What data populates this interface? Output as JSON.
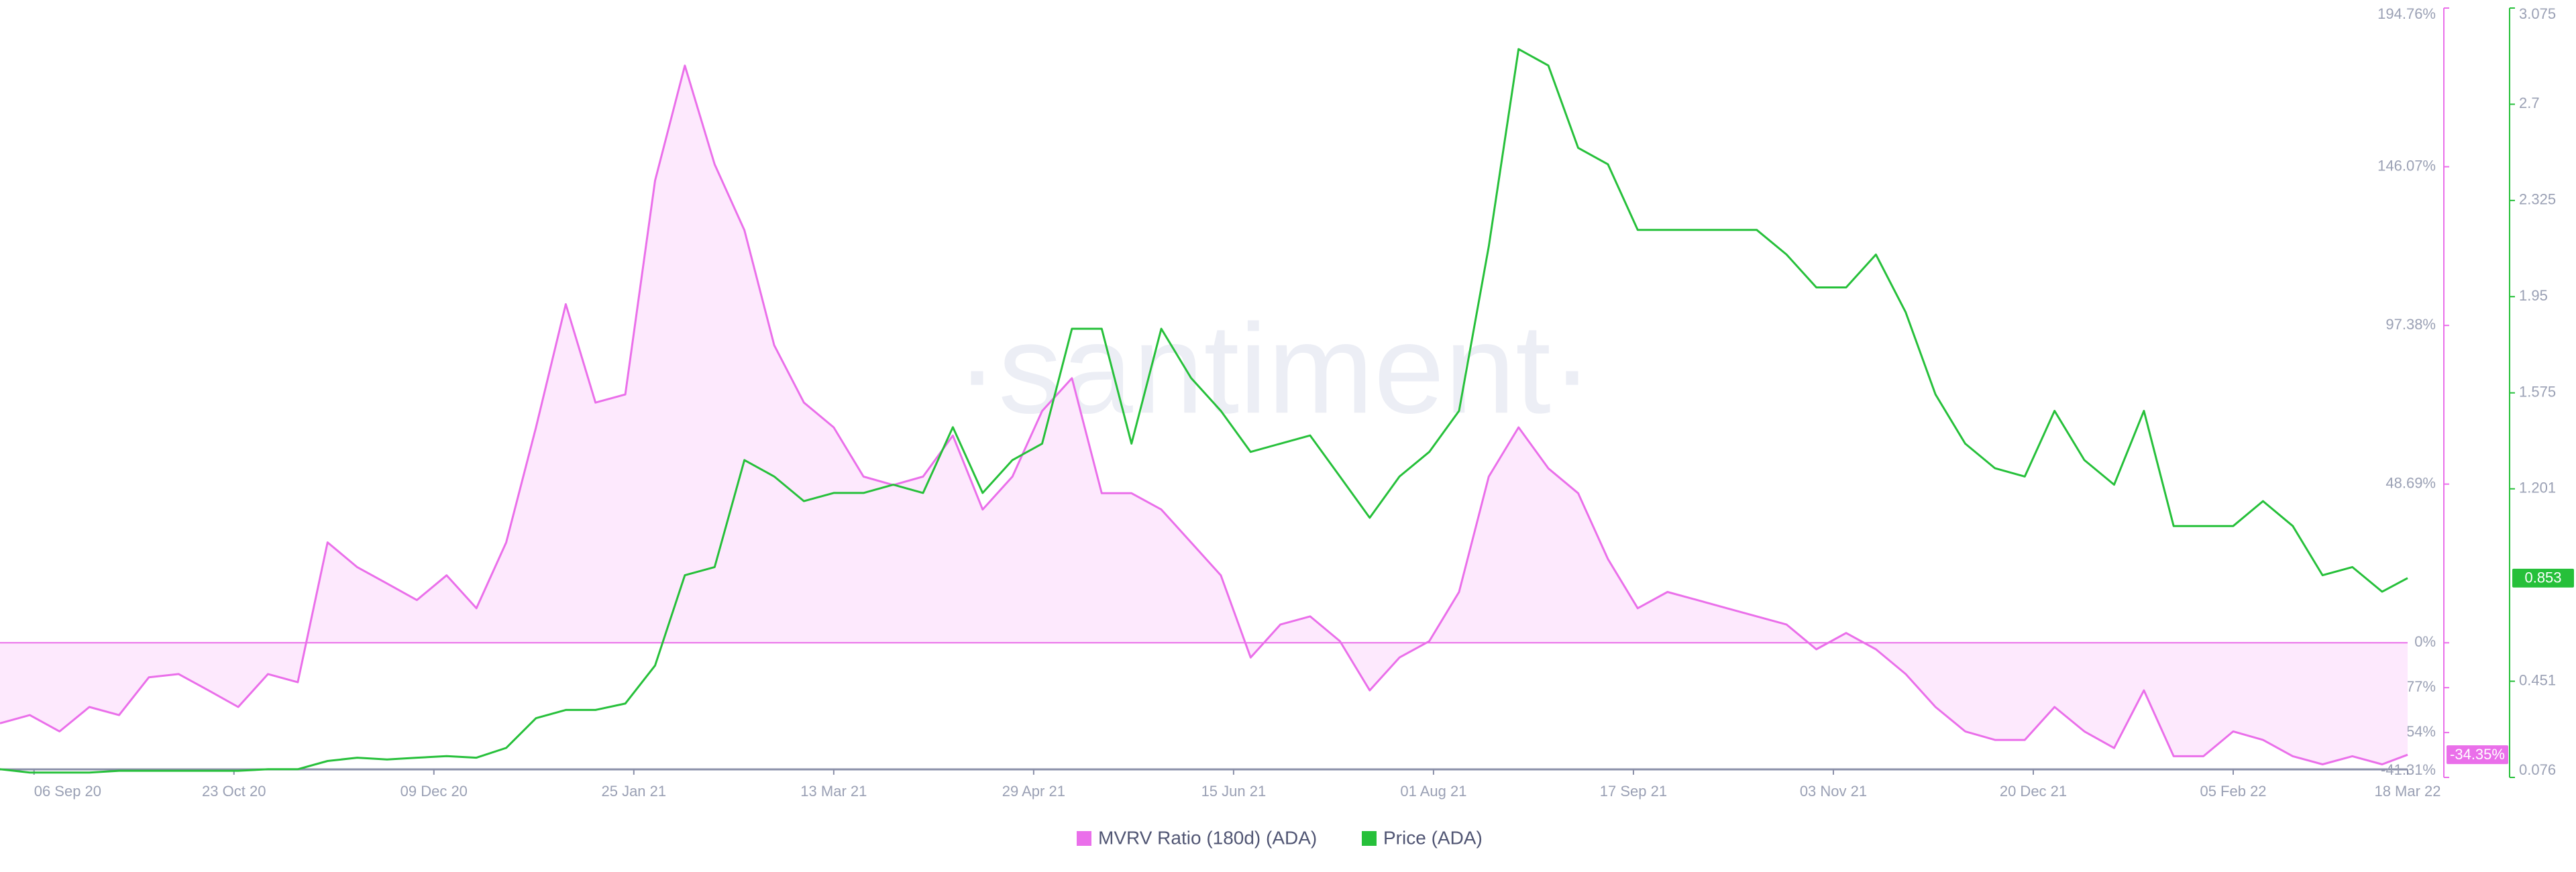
{
  "chart_data": {
    "type": "line",
    "watermark": "·santiment·",
    "x": [
      "2020-08-29",
      "2020-09-05",
      "2020-09-12",
      "2020-09-19",
      "2020-09-26",
      "2020-10-03",
      "2020-10-10",
      "2020-10-17",
      "2020-10-24",
      "2020-10-31",
      "2020-11-07",
      "2020-11-14",
      "2020-11-21",
      "2020-11-28",
      "2020-12-05",
      "2020-12-12",
      "2020-12-19",
      "2020-12-26",
      "2021-01-02",
      "2021-01-09",
      "2021-01-16",
      "2021-01-23",
      "2021-01-30",
      "2021-02-06",
      "2021-02-13",
      "2021-02-20",
      "2021-02-27",
      "2021-03-06",
      "2021-03-13",
      "2021-03-20",
      "2021-03-27",
      "2021-04-03",
      "2021-04-10",
      "2021-04-17",
      "2021-04-24",
      "2021-05-01",
      "2021-05-08",
      "2021-05-15",
      "2021-05-22",
      "2021-05-29",
      "2021-06-05",
      "2021-06-12",
      "2021-06-19",
      "2021-06-26",
      "2021-07-03",
      "2021-07-10",
      "2021-07-17",
      "2021-07-24",
      "2021-07-31",
      "2021-08-07",
      "2021-08-14",
      "2021-08-21",
      "2021-08-28",
      "2021-09-04",
      "2021-09-11",
      "2021-09-18",
      "2021-09-25",
      "2021-10-02",
      "2021-10-09",
      "2021-10-16",
      "2021-10-23",
      "2021-10-30",
      "2021-11-06",
      "2021-11-13",
      "2021-11-20",
      "2021-11-27",
      "2021-12-04",
      "2021-12-11",
      "2021-12-18",
      "2021-12-25",
      "2022-01-01",
      "2022-01-08",
      "2022-01-15",
      "2022-01-22",
      "2022-01-29",
      "2022-02-05",
      "2022-02-12",
      "2022-02-19",
      "2022-02-26",
      "2022-03-05",
      "2022-03-12",
      "2022-03-18"
    ],
    "xlim": [
      "2020-08-29",
      "2022-03-18"
    ],
    "xticks": [
      {
        "value": "2020-09-06",
        "label": "06 Sep 20"
      },
      {
        "value": "2020-10-23",
        "label": "23 Oct 20"
      },
      {
        "value": "2020-12-09",
        "label": "09 Dec 20"
      },
      {
        "value": "2021-01-25",
        "label": "25 Jan 21"
      },
      {
        "value": "2021-03-13",
        "label": "13 Mar 21"
      },
      {
        "value": "2021-04-29",
        "label": "29 Apr 21"
      },
      {
        "value": "2021-06-15",
        "label": "15 Jun 21"
      },
      {
        "value": "2021-08-01",
        "label": "01 Aug 21"
      },
      {
        "value": "2021-09-17",
        "label": "17 Sep 21"
      },
      {
        "value": "2021-11-03",
        "label": "03 Nov 21"
      },
      {
        "value": "2021-12-20",
        "label": "20 Dec 21"
      },
      {
        "value": "2022-02-05",
        "label": "05 Feb 22"
      },
      {
        "value": "2022-03-18",
        "label": "18 Mar 22"
      }
    ],
    "ylim": [
      -41.31,
      194.76
    ],
    "yticks": [
      {
        "value": 194.76,
        "label": "194.76%"
      },
      {
        "value": 146.07,
        "label": "146.07%"
      },
      {
        "value": 97.38,
        "label": "97.38%"
      },
      {
        "value": 48.69,
        "label": "48.69%"
      },
      {
        "value": 0,
        "label": "0%"
      },
      {
        "value": -13.77,
        "label": "-13.77%"
      },
      {
        "value": -27.54,
        "label": "-27.54%"
      },
      {
        "value": -41.31,
        "label": "-41.31%"
      }
    ],
    "y2lim": [
      0.076,
      3.075
    ],
    "y2ticks": [
      3.075,
      2.7,
      2.325,
      1.95,
      1.575,
      1.201,
      0.451,
      0.076
    ],
    "series": [
      {
        "name": "MVRV Ratio (180d) (ADA)",
        "color": "#ea6fea",
        "fill": "#fde9fd",
        "axis": "y",
        "values": [
          -24.7,
          -22.2,
          -27.2,
          -19.7,
          -22.2,
          -10.6,
          -9.6,
          -14.6,
          -19.7,
          -9.6,
          -12.1,
          30.8,
          23.2,
          18.2,
          13.1,
          20.7,
          10.6,
          30.8,
          66.1,
          103.9,
          73.7,
          76.2,
          141.8,
          177.1,
          146.8,
          126.6,
          91.3,
          73.7,
          66.1,
          51.0,
          48.4,
          51.0,
          63.6,
          40.9,
          51.0,
          71.1,
          81.2,
          45.9,
          45.9,
          40.9,
          30.8,
          20.7,
          -4.5,
          5.6,
          8.1,
          0.5,
          -14.6,
          -4.5,
          0.5,
          15.6,
          51.0,
          66.1,
          53.5,
          45.9,
          25.7,
          10.6,
          15.6,
          13.1,
          10.6,
          8.1,
          5.6,
          -2.0,
          3.0,
          -2.0,
          -9.6,
          -19.7,
          -27.2,
          -29.8,
          -29.8,
          -19.7,
          -27.2,
          -32.3,
          -14.6,
          -34.8,
          -34.8,
          -27.2,
          -29.8,
          -34.8,
          -37.3,
          -34.8,
          -37.3,
          -34.35
        ],
        "value_labels": [
          null,
          null,
          null,
          null,
          null,
          null,
          null,
          null,
          null,
          null,
          null,
          null,
          null,
          null,
          null,
          null,
          null,
          null,
          null,
          null,
          null,
          null,
          null,
          null,
          null,
          null,
          null,
          null,
          null,
          null,
          null,
          null,
          null,
          null,
          null,
          null,
          null,
          null,
          null,
          null,
          null,
          null,
          null,
          null,
          null,
          null,
          null,
          null,
          null,
          null,
          null,
          null,
          null,
          null,
          null,
          null,
          null,
          null,
          null,
          null,
          null,
          null,
          null,
          null,
          null,
          null,
          null,
          null,
          null,
          null,
          null,
          null,
          null,
          null,
          null,
          null,
          null,
          null,
          null,
          null,
          null,
          "-34.35%"
        ]
      },
      {
        "name": "Price (ADA)",
        "color": "#26c03a",
        "axis": "y2",
        "values": [
          0.108,
          0.095,
          0.095,
          0.095,
          0.102,
          0.102,
          0.102,
          0.102,
          0.102,
          0.108,
          0.108,
          0.14,
          0.153,
          0.146,
          0.153,
          0.159,
          0.153,
          0.191,
          0.307,
          0.339,
          0.339,
          0.364,
          0.512,
          0.864,
          0.896,
          1.313,
          1.249,
          1.153,
          1.185,
          1.185,
          1.217,
          1.185,
          1.441,
          1.185,
          1.313,
          1.377,
          1.825,
          1.825,
          1.377,
          1.825,
          1.633,
          1.505,
          1.345,
          1.377,
          1.409,
          1.249,
          1.088,
          1.249,
          1.345,
          1.505,
          2.146,
          2.915,
          2.851,
          2.53,
          2.466,
          2.21,
          2.21,
          2.21,
          2.21,
          2.21,
          2.114,
          1.986,
          1.986,
          2.114,
          1.889,
          1.569,
          1.377,
          1.281,
          1.249,
          1.505,
          1.313,
          1.217,
          1.505,
          1.056,
          1.056,
          1.056,
          1.153,
          1.056,
          0.864,
          0.896,
          0.8,
          0.853
        ],
        "value_labels": [
          null,
          null,
          null,
          null,
          null,
          null,
          null,
          null,
          null,
          null,
          null,
          null,
          null,
          null,
          null,
          null,
          null,
          null,
          null,
          null,
          null,
          null,
          null,
          null,
          null,
          null,
          null,
          null,
          null,
          null,
          null,
          null,
          null,
          null,
          null,
          null,
          null,
          null,
          null,
          null,
          null,
          null,
          null,
          null,
          null,
          null,
          null,
          null,
          null,
          null,
          null,
          null,
          null,
          null,
          null,
          null,
          null,
          null,
          null,
          null,
          null,
          null,
          null,
          null,
          null,
          null,
          null,
          null,
          null,
          null,
          null,
          null,
          null,
          null,
          null,
          null,
          null,
          null,
          null,
          null,
          null,
          "0.853"
        ]
      }
    ]
  }
}
